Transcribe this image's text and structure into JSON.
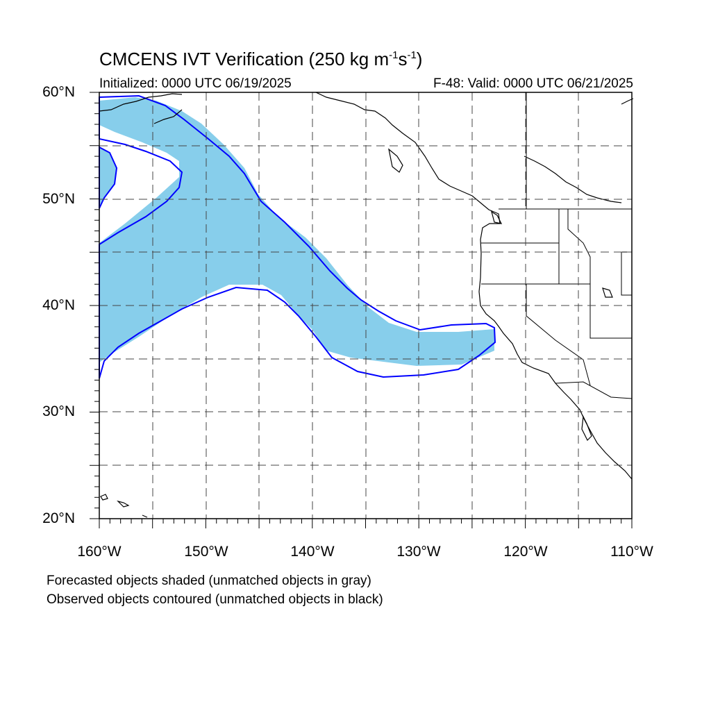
{
  "figure": {
    "title_main": "CMCENS IVT Verification (250 kg m",
    "title_exp1": "-1",
    "title_mid": "s",
    "title_exp2": "-1",
    "title_end": ")",
    "initialized": "Initialized: 0000 UTC 06/19/2025",
    "valid": "F-48: Valid: 0000 UTC 06/21/2025",
    "footnote_1": "Forecasted objects shaded (unmatched objects in gray)",
    "footnote_2": "Observed objects contoured (unmatched objects in black)"
  },
  "map": {
    "lon_range": [
      -160,
      -110
    ],
    "lat_range": [
      20,
      60
    ],
    "lat_labels": [
      "60°N",
      "50°N",
      "40°N",
      "30°N",
      "20°N"
    ],
    "lon_labels": [
      "160°W",
      "150°W",
      "140°W",
      "130°W",
      "120°W",
      "110°W"
    ],
    "grid_interval_deg": 5,
    "gridlines": "dashed",
    "colors": {
      "forecast_fill": "#87CEEB",
      "observed_contour": "#0000FF",
      "coastline": "#000000",
      "background": "#FFFFFF"
    }
  }
}
